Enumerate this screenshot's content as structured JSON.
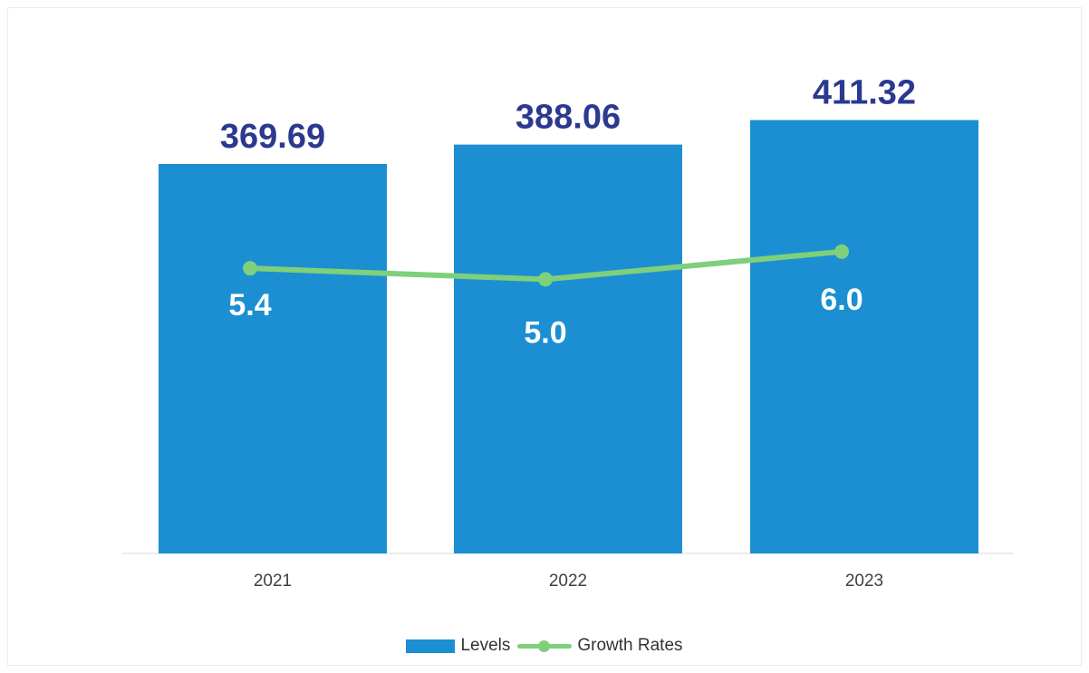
{
  "chart_data": {
    "type": "bar",
    "categories": [
      "2021",
      "2022",
      "2023"
    ],
    "series": [
      {
        "name": "Levels",
        "type": "bar",
        "values": [
          369.69,
          388.06,
          411.32
        ],
        "labels": [
          "369.69",
          "388.06",
          "411.32"
        ],
        "color": "#1b8fd2",
        "label_color": "#2b3990"
      },
      {
        "name": "Growth Rates",
        "type": "line",
        "values": [
          5.4,
          5.0,
          6.0
        ],
        "labels": [
          "5.4",
          "5.0",
          "6.0"
        ],
        "color": "#7ed07a",
        "label_color": "#ffffff"
      }
    ],
    "legend_position": "bottom",
    "grid": false
  }
}
